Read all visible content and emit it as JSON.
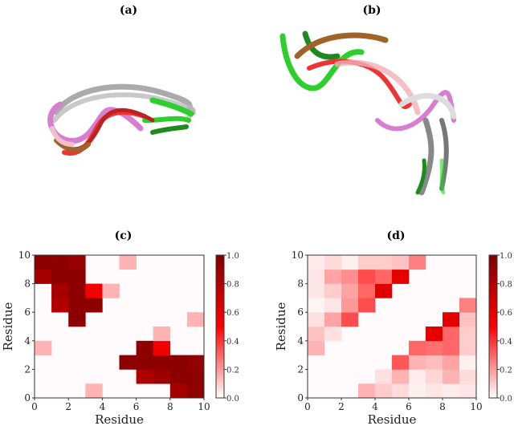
{
  "panels": {
    "a": {
      "label": "(a)"
    },
    "b": {
      "label": "(b)"
    }
  },
  "colormap": {
    "low": "#ffffff",
    "mid": "#ff0000",
    "high": "#7f0000"
  },
  "chart_data": [
    {
      "type": "heatmap",
      "title": "(c)",
      "xlabel": "Residue",
      "ylabel": "Residue",
      "xlim": [
        0,
        10
      ],
      "ylim": [
        0,
        10
      ],
      "xticks": [
        "0",
        "2",
        "4",
        "6",
        "8",
        "10"
      ],
      "yticks": [
        "0",
        "2",
        "4",
        "6",
        "8",
        "10"
      ],
      "colorbar": {
        "range": [
          0,
          1
        ],
        "ticks": [
          "0.0",
          "0.2",
          "0.4",
          "0.6",
          "0.8",
          "1.0"
        ]
      },
      "rows_bottom_to_top": [
        [
          0,
          0,
          0,
          0.15,
          0,
          0,
          0,
          0,
          0.85,
          0.95
        ],
        [
          0,
          0,
          0,
          0,
          0,
          0,
          0.82,
          0.88,
          0.95,
          0.95
        ],
        [
          0,
          0,
          0,
          0,
          0,
          0.95,
          0.95,
          0.95,
          0.95,
          0.92
        ],
        [
          0.15,
          0,
          0,
          0,
          0,
          0,
          0.95,
          0.55,
          0,
          0
        ],
        [
          0,
          0,
          0,
          0,
          0,
          0,
          0,
          0.15,
          0,
          0
        ],
        [
          0,
          0,
          0.95,
          0,
          0,
          0,
          0,
          0,
          0,
          0.15
        ],
        [
          0,
          0.8,
          0.95,
          0.95,
          0,
          0,
          0,
          0,
          0,
          0
        ],
        [
          0,
          0.85,
          0.95,
          0.55,
          0.15,
          0,
          0,
          0,
          0,
          0
        ],
        [
          0.85,
          0.95,
          0.95,
          0,
          0,
          0,
          0,
          0,
          0,
          0
        ],
        [
          0.95,
          0.95,
          0.9,
          0,
          0,
          0.15,
          0,
          0,
          0,
          0
        ]
      ]
    },
    {
      "type": "heatmap",
      "title": "(d)",
      "xlabel": "Residue",
      "ylabel": "Residue",
      "xlim": [
        0,
        10
      ],
      "ylim": [
        0,
        10
      ],
      "xticks": [
        "0",
        "2",
        "4",
        "6",
        "8",
        "10"
      ],
      "yticks": [
        "0",
        "2",
        "4",
        "6",
        "8",
        "10"
      ],
      "colorbar": {
        "range": [
          0,
          1
        ],
        "ticks": [
          "0.0",
          "0.2",
          "0.4",
          "0.6",
          "0.8",
          "1.0"
        ]
      },
      "rows_bottom_to_top": [
        [
          0,
          0,
          0,
          0.15,
          0.1,
          0.07,
          0.03,
          0.05,
          0.04,
          0.05
        ],
        [
          0,
          0,
          0,
          0,
          0.06,
          0.15,
          0.04,
          0.08,
          0.15,
          0.07
        ],
        [
          0,
          0,
          0,
          0,
          0,
          0.33,
          0.15,
          0.13,
          0.18,
          0.03
        ],
        [
          0.15,
          0,
          0,
          0,
          0,
          0,
          0.3,
          0.28,
          0.3,
          0.1
        ],
        [
          0.12,
          0.06,
          0,
          0,
          0,
          0,
          0,
          0.6,
          0.3,
          0.1
        ],
        [
          0.06,
          0.18,
          0.35,
          0,
          0,
          0,
          0,
          0,
          0.6,
          0.12
        ],
        [
          0.02,
          0.05,
          0.2,
          0.35,
          0,
          0,
          0,
          0,
          0,
          0.25
        ],
        [
          0.05,
          0.1,
          0.18,
          0.3,
          0.62,
          0,
          0,
          0,
          0,
          0
        ],
        [
          0.05,
          0.18,
          0.22,
          0.35,
          0.3,
          0.6,
          0,
          0,
          0,
          0
        ],
        [
          0.04,
          0.07,
          0.03,
          0.1,
          0.1,
          0.12,
          0.25,
          0,
          0,
          0
        ]
      ]
    }
  ]
}
